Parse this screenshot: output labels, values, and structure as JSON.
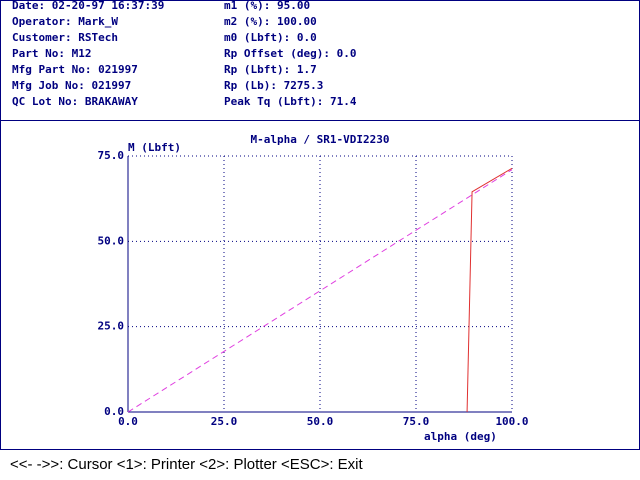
{
  "header": {
    "left": [
      "Date: 02-20-97 16:37:39",
      "Operator: Mark_W",
      "Customer: RSTech",
      "Part No: M12",
      "Mfg Part No: 021997",
      "Mfg Job No: 021997",
      "QC Lot No: BRAKAWAY"
    ],
    "right": [
      "m1 (%): 95.00",
      "m2 (%): 100.00",
      "m0 (Lbft): 0.0",
      "Rp Offset (deg): 0.0",
      "Rp (Lbft): 1.7",
      "Rp (Lb): 7275.3",
      "Peak Tq (Lbft): 71.4"
    ]
  },
  "chart_data": {
    "type": "line",
    "title": "M-alpha / SR1-VDI2230",
    "ylabel": "M (Lbft)",
    "xlabel": "alpha (deg)",
    "xlim": [
      0,
      100
    ],
    "ylim": [
      0,
      75
    ],
    "xticks": [
      {
        "value": 0,
        "label": "0.0"
      },
      {
        "value": 25,
        "label": "25.0"
      },
      {
        "value": 50,
        "label": "50.0"
      },
      {
        "value": 75,
        "label": "75.0"
      },
      {
        "value": 100,
        "label": "100.0"
      }
    ],
    "yticks": [
      {
        "value": 0,
        "label": "0.0"
      },
      {
        "value": 25,
        "label": "25.0"
      },
      {
        "value": 50,
        "label": "50.0"
      },
      {
        "value": 75,
        "label": "75.0"
      }
    ],
    "grid": true,
    "series": [
      {
        "color": "#e040e0",
        "dashed": true,
        "x": [
          0,
          100
        ],
        "values": [
          0,
          71
        ]
      },
      {
        "color": "#e03030",
        "dashed": false,
        "x": [
          88.3,
          89.6,
          100
        ],
        "values": [
          0,
          64.5,
          71.4
        ]
      }
    ]
  },
  "footer": "<<- ->>: Cursor  <1>: Printer  <2>: Plotter  <ESC>: Exit"
}
